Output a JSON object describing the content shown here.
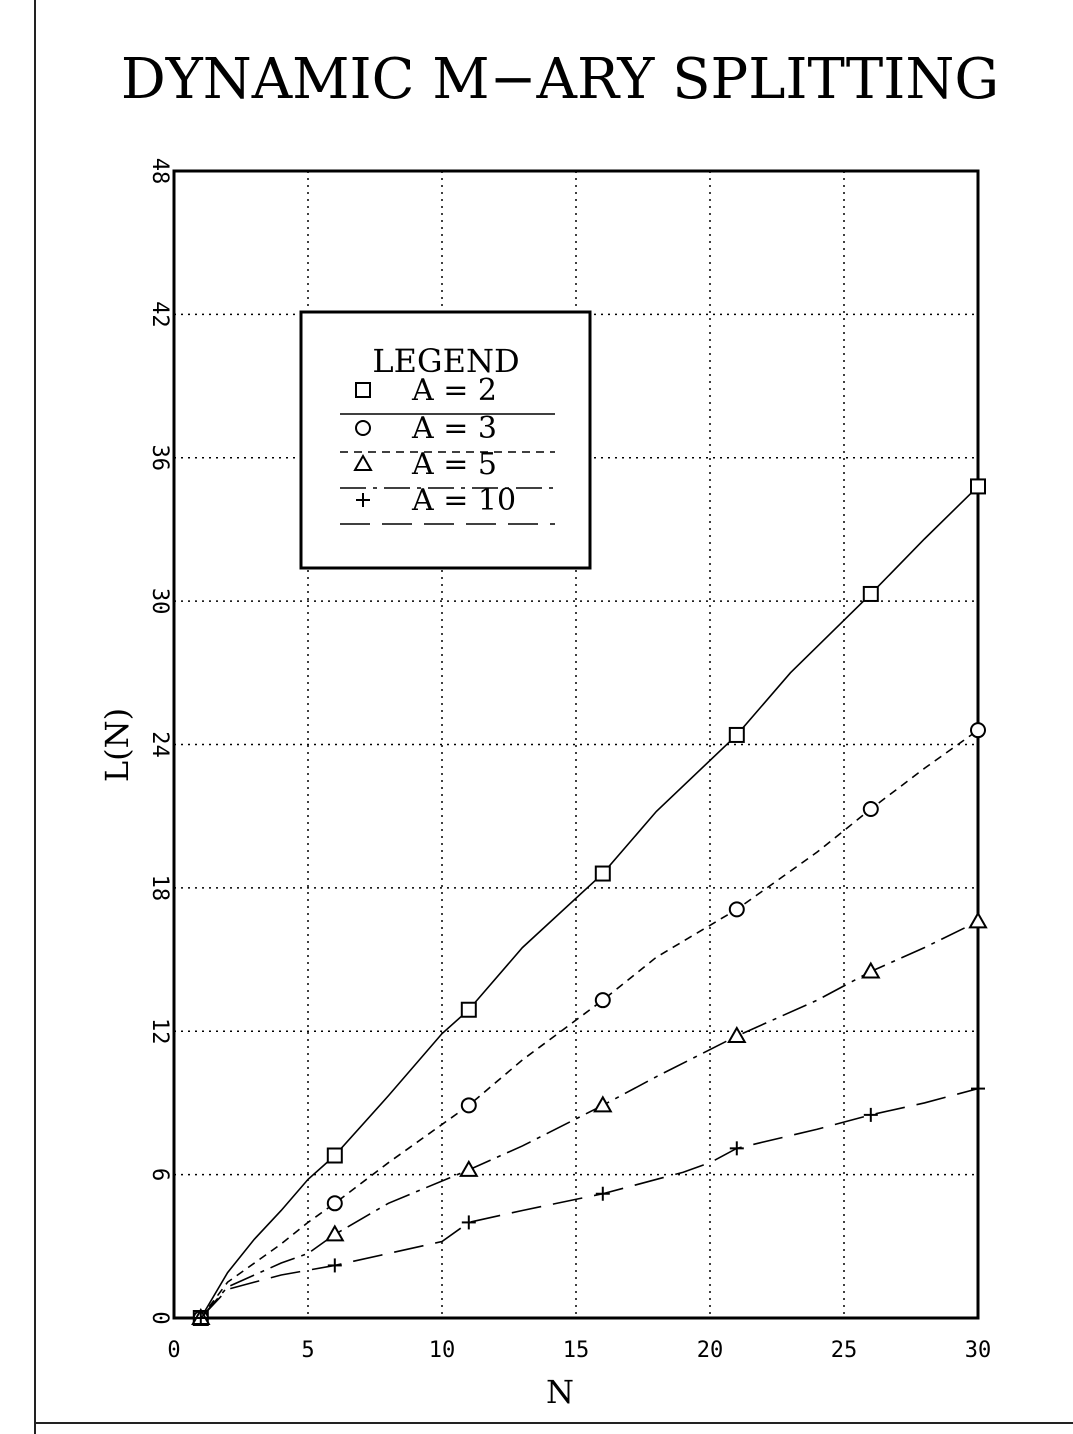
{
  "chart_data": {
    "type": "line",
    "title": "DYNAMIC M−ARY SPLITTING",
    "xlabel": "N",
    "ylabel": "L(N)",
    "xlim": [
      0,
      30
    ],
    "ylim": [
      0,
      48
    ],
    "xticks": [
      0,
      5,
      10,
      15,
      20,
      25,
      30
    ],
    "yticks": [
      0,
      6,
      12,
      18,
      24,
      30,
      36,
      42,
      48
    ],
    "grid": true,
    "legend": {
      "title": "LEGEND",
      "placement": "upper-left",
      "entries": [
        "A = 2",
        "A = 3",
        "A = 5",
        "A = 10"
      ]
    },
    "series": [
      {
        "name": "A = 2",
        "marker": "square",
        "line_style": "solid",
        "x": [
          1,
          2,
          3,
          4,
          5,
          6,
          8,
          10,
          11,
          13,
          16,
          18,
          21,
          23,
          26,
          28,
          30
        ],
        "y": [
          0,
          1.9,
          3.3,
          4.5,
          5.8,
          6.8,
          9.3,
          11.9,
          12.9,
          15.5,
          18.6,
          21.2,
          24.4,
          27.0,
          30.3,
          32.6,
          34.8
        ]
      },
      {
        "name": "A = 3",
        "marker": "circle",
        "line_style": "dashed",
        "x": [
          1,
          2,
          3,
          4,
          5,
          6,
          8,
          11,
          13,
          16,
          18,
          21,
          24,
          26,
          28,
          30
        ],
        "y": [
          0,
          1.5,
          2.3,
          3.1,
          4.0,
          4.8,
          6.5,
          8.9,
          10.8,
          13.3,
          15.1,
          17.1,
          19.5,
          21.3,
          23.0,
          24.6
        ]
      },
      {
        "name": "A = 5",
        "marker": "triangle",
        "line_style": "dashdot",
        "x": [
          1,
          2,
          3,
          4,
          5,
          6,
          8,
          11,
          13,
          16,
          18,
          21,
          24,
          26,
          28,
          30
        ],
        "y": [
          0,
          1.3,
          1.8,
          2.3,
          2.7,
          3.5,
          4.8,
          6.2,
          7.2,
          8.9,
          10.1,
          11.8,
          13.3,
          14.5,
          15.5,
          16.6
        ]
      },
      {
        "name": "A = 10",
        "marker": "plus",
        "line_style": "longdash",
        "x": [
          1,
          2,
          3,
          4,
          5,
          6,
          8,
          10,
          11,
          13,
          16,
          19,
          20,
          21,
          24,
          26,
          28,
          30
        ],
        "y": [
          0,
          1.2,
          1.5,
          1.8,
          2.0,
          2.2,
          2.7,
          3.2,
          4.0,
          4.5,
          5.2,
          6.1,
          6.5,
          7.1,
          7.9,
          8.5,
          9.0,
          9.6
        ]
      }
    ]
  }
}
